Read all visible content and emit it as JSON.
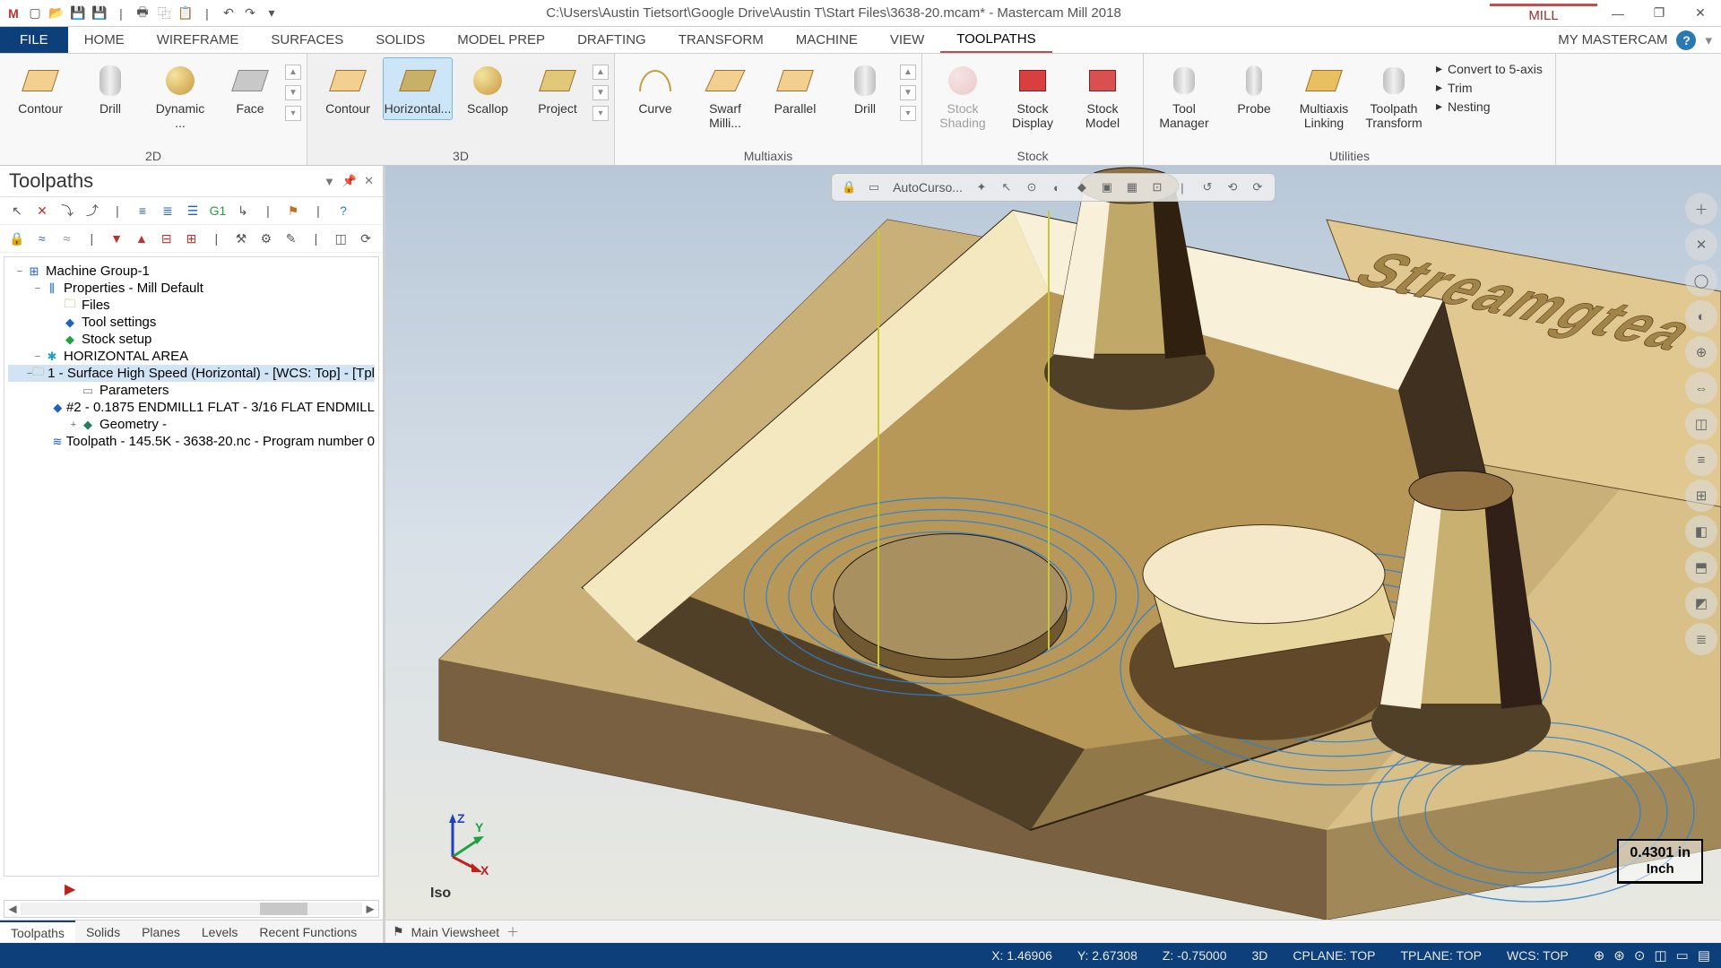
{
  "titlebar": {
    "path": "C:\\Users\\Austin Tietsort\\Google Drive\\Austin T\\Start Files\\3638-20.mcam* - Mastercam Mill 2018",
    "context": "MILL",
    "qat": [
      "app",
      "new",
      "open",
      "save",
      "saveas",
      "print",
      "cut",
      "paste",
      "undo",
      "redo"
    ]
  },
  "menu": {
    "file": "FILE",
    "tabs": [
      "HOME",
      "WIREFRAME",
      "SURFACES",
      "SOLIDS",
      "MODEL PREP",
      "DRAFTING",
      "TRANSFORM",
      "MACHINE",
      "VIEW",
      "TOOLPATHS"
    ],
    "active": "TOOLPATHS",
    "my": "MY MASTERCAM"
  },
  "ribbon": {
    "g2d": {
      "label": "2D",
      "items": [
        "Contour",
        "Drill",
        "Dynamic ...",
        "Face"
      ]
    },
    "g3d": {
      "label": "3D",
      "items": [
        "Contour",
        "Horizontal...",
        "Scallop",
        "Project"
      ],
      "active": "Horizontal..."
    },
    "multi": {
      "label": "Multiaxis",
      "items": [
        "Curve",
        "Swarf Milli...",
        "Parallel",
        "Drill"
      ]
    },
    "stock": {
      "label": "Stock",
      "items": [
        "Stock Shading",
        "Stock Display",
        "Stock Model"
      ],
      "disabled": "Stock Shading"
    },
    "util": {
      "label": "Utilities",
      "items": [
        "Tool Manager",
        "Probe",
        "Multiaxis Linking",
        "Toolpath Transform"
      ],
      "side": [
        "Convert to 5-axis",
        "Trim",
        "Nesting"
      ]
    }
  },
  "panel": {
    "title": "Toolpaths",
    "tree": [
      {
        "depth": 0,
        "twisty": "−",
        "icon": "⊞",
        "color": "#2060c0",
        "label": "Machine Group-1"
      },
      {
        "depth": 1,
        "twisty": "−",
        "icon": "⫼",
        "color": "#1060b0",
        "label": "Properties - Mill Default"
      },
      {
        "depth": 2,
        "twisty": "",
        "icon": "🗀",
        "color": "#b09020",
        "label": "Files"
      },
      {
        "depth": 2,
        "twisty": "",
        "icon": "◆",
        "color": "#2060c0",
        "label": "Tool settings"
      },
      {
        "depth": 2,
        "twisty": "",
        "icon": "◆",
        "color": "#20a040",
        "label": "Stock setup"
      },
      {
        "depth": 1,
        "twisty": "−",
        "icon": "✱",
        "color": "#20a0c0",
        "label": "HORIZONTAL AREA"
      },
      {
        "depth": 2,
        "twisty": "−",
        "icon": "🗀",
        "color": "#c89830",
        "label": "1 - Surface High Speed (Horizontal) - [WCS: Top] - [Tpl",
        "selected": true
      },
      {
        "depth": 3,
        "twisty": "",
        "icon": "▭",
        "color": "#888",
        "label": "Parameters"
      },
      {
        "depth": 3,
        "twisty": "",
        "icon": "◆",
        "color": "#2060c0",
        "label": "#2 - 0.1875 ENDMILL1 FLAT -  3/16 FLAT ENDMILL"
      },
      {
        "depth": 3,
        "twisty": "+",
        "icon": "◆",
        "color": "#208060",
        "label": "Geometry -"
      },
      {
        "depth": 3,
        "twisty": "",
        "icon": "≋",
        "color": "#2060c0",
        "label": "Toolpath - 145.5K - 3638-20.nc - Program number 0"
      }
    ]
  },
  "floatbar": {
    "text": "AutoCurso..."
  },
  "bottomtabs": {
    "left": [
      "Toolpaths",
      "Solids",
      "Planes",
      "Levels",
      "Recent Functions"
    ],
    "left_active": "Toolpaths",
    "sheet": "Main Viewsheet"
  },
  "status": {
    "x": "X: 1.46906",
    "y": "Y: 2.67308",
    "z": "Z: -0.75000",
    "mode": "3D",
    "cplane": "CPLANE: TOP",
    "tplane": "TPLANE: TOP",
    "wcs": "WCS: TOP"
  },
  "viewport": {
    "iso": "Iso",
    "scale_value": "0.4301 in",
    "scale_unit": "Inch",
    "part_colors": {
      "top": "#d8c088",
      "side_light": "#e8d8a8",
      "side_dark": "#786040",
      "pocket_wall_light": "#f4e8c0",
      "pocket_wall_dark": "#504028",
      "pocket_floor": "#b89858",
      "boss_light": "#f8f0d0",
      "boss_dark": "#806030",
      "toolpath": "#3080d0",
      "axis_guide": "#c8c830"
    }
  }
}
